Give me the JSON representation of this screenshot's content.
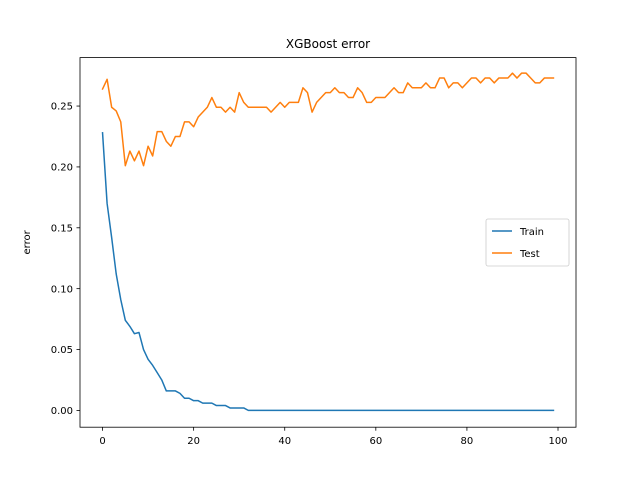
{
  "chart_data": {
    "type": "line",
    "title": "XGBoost error",
    "xlabel": "",
    "ylabel": "error",
    "xlim": [
      -4.95,
      103.95
    ],
    "ylim": [
      -0.0138,
      0.2898
    ],
    "xticks": [
      0,
      20,
      40,
      60,
      80,
      100
    ],
    "xtick_labels": [
      "0",
      "20",
      "40",
      "60",
      "80",
      "100"
    ],
    "yticks": [
      0.0,
      0.05,
      0.1,
      0.15,
      0.2,
      0.25
    ],
    "ytick_labels": [
      "0.00",
      "0.05",
      "0.10",
      "0.15",
      "0.20",
      "0.25"
    ],
    "grid": false,
    "legend_position": "center-right",
    "colors": {
      "Train": "#1f77b4",
      "Test": "#ff7f0e"
    },
    "x": [
      0,
      1,
      2,
      3,
      4,
      5,
      6,
      7,
      8,
      9,
      10,
      11,
      12,
      13,
      14,
      15,
      16,
      17,
      18,
      19,
      20,
      21,
      22,
      23,
      24,
      25,
      26,
      27,
      28,
      29,
      30,
      31,
      32,
      33,
      34,
      35,
      36,
      37,
      38,
      39,
      40,
      41,
      42,
      43,
      44,
      45,
      46,
      47,
      48,
      49,
      50,
      51,
      52,
      53,
      54,
      55,
      56,
      57,
      58,
      59,
      60,
      61,
      62,
      63,
      64,
      65,
      66,
      67,
      68,
      69,
      70,
      71,
      72,
      73,
      74,
      75,
      76,
      77,
      78,
      79,
      80,
      81,
      82,
      83,
      84,
      85,
      86,
      87,
      88,
      89,
      90,
      91,
      92,
      93,
      94,
      95,
      96,
      97,
      98,
      99
    ],
    "series": [
      {
        "name": "Train",
        "values": [
          0.228,
          0.17,
          0.142,
          0.112,
          0.091,
          0.074,
          0.069,
          0.063,
          0.064,
          0.05,
          0.042,
          0.037,
          0.031,
          0.025,
          0.016,
          0.016,
          0.016,
          0.014,
          0.01,
          0.01,
          0.008,
          0.008,
          0.006,
          0.006,
          0.006,
          0.004,
          0.004,
          0.004,
          0.002,
          0.002,
          0.002,
          0.002,
          0.0,
          0.0,
          0.0,
          0.0,
          0.0,
          0.0,
          0.0,
          0.0,
          0.0,
          0.0,
          0.0,
          0.0,
          0.0,
          0.0,
          0.0,
          0.0,
          0.0,
          0.0,
          0.0,
          0.0,
          0.0,
          0.0,
          0.0,
          0.0,
          0.0,
          0.0,
          0.0,
          0.0,
          0.0,
          0.0,
          0.0,
          0.0,
          0.0,
          0.0,
          0.0,
          0.0,
          0.0,
          0.0,
          0.0,
          0.0,
          0.0,
          0.0,
          0.0,
          0.0,
          0.0,
          0.0,
          0.0,
          0.0,
          0.0,
          0.0,
          0.0,
          0.0,
          0.0,
          0.0,
          0.0,
          0.0,
          0.0,
          0.0,
          0.0,
          0.0,
          0.0,
          0.0,
          0.0,
          0.0,
          0.0,
          0.0,
          0.0,
          0.0
        ]
      },
      {
        "name": "Test",
        "values": [
          0.264,
          0.272,
          0.249,
          0.246,
          0.237,
          0.201,
          0.213,
          0.205,
          0.213,
          0.201,
          0.217,
          0.209,
          0.229,
          0.229,
          0.221,
          0.217,
          0.225,
          0.225,
          0.237,
          0.237,
          0.233,
          0.241,
          0.245,
          0.249,
          0.257,
          0.249,
          0.249,
          0.245,
          0.249,
          0.245,
          0.261,
          0.253,
          0.249,
          0.249,
          0.249,
          0.249,
          0.249,
          0.245,
          0.249,
          0.253,
          0.249,
          0.253,
          0.253,
          0.253,
          0.265,
          0.261,
          0.245,
          0.253,
          0.257,
          0.261,
          0.261,
          0.265,
          0.261,
          0.261,
          0.257,
          0.257,
          0.265,
          0.261,
          0.253,
          0.253,
          0.257,
          0.257,
          0.257,
          0.261,
          0.265,
          0.261,
          0.261,
          0.269,
          0.265,
          0.265,
          0.265,
          0.269,
          0.265,
          0.265,
          0.273,
          0.273,
          0.265,
          0.269,
          0.269,
          0.265,
          0.269,
          0.273,
          0.273,
          0.269,
          0.273,
          0.273,
          0.269,
          0.273,
          0.273,
          0.273,
          0.277,
          0.273,
          0.277,
          0.277,
          0.273,
          0.269,
          0.269,
          0.273,
          0.273,
          0.273
        ]
      }
    ]
  }
}
